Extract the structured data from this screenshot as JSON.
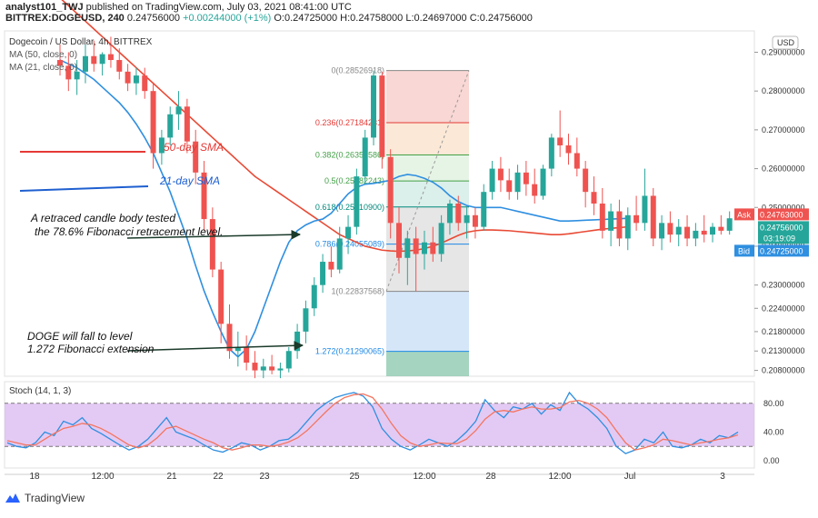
{
  "header": {
    "author": "analyst101_TWJ",
    "published": "published on TradingView.com, July 03, 2021 08:41:00 UTC",
    "symbol": "BITTREX:DOGEUSD, 240",
    "last": "0.24756000",
    "change": "+0.00244000 (+1%)",
    "ohlc": [
      "O:0.24725000",
      "H:0.24758000",
      "L:0.24697000",
      "C:0.24756000"
    ]
  },
  "legend": {
    "title": "Dogecoin / US Dollar, 4h, BITTREX",
    "ma50": "MA (50, close, 0)",
    "ma21": "MA (21, close, 0)"
  },
  "annotations": {
    "sma50": "50-day SMA",
    "sma21": "21-day SMA",
    "note1_line1": "A retraced candle body tested",
    "note1_line2": "the 78.6% Fibonacci retracement level.",
    "note2_line1": "DOGE will fall to level",
    "note2_line2": "1.272 Fibonacci extension"
  },
  "fib_levels": [
    {
      "label": "0(0.28526918)",
      "price": 0.28526918,
      "color": "#888888"
    },
    {
      "label": "0.236(0.27184231)",
      "price": 0.27184231,
      "color": "#e53935"
    },
    {
      "label": "0.382(0.26353586)",
      "price": 0.26353586,
      "color": "#43a047"
    },
    {
      "label": "0.5(0.25682243)",
      "price": 0.25682243,
      "color": "#43a047"
    },
    {
      "label": "0.618(0.25010900)",
      "price": 0.250109,
      "color": "#00897b"
    },
    {
      "label": "0.786(0.24055089)",
      "price": 0.24055089,
      "color": "#1e88e5"
    },
    {
      "label": "1(0.22837568)",
      "price": 0.22837568,
      "color": "#888888"
    },
    {
      "label": "1.272(0.21290065)",
      "price": 0.21290065,
      "color": "#1e88e5"
    }
  ],
  "price_axis": {
    "currency": "USD",
    "ticks": [
      "0.29000000",
      "0.28000000",
      "0.27000000",
      "0.26000000",
      "0.25000000",
      "0.24000000",
      "0.23000000",
      "0.22400000",
      "0.21800000",
      "0.21300000",
      "0.20800000"
    ],
    "ask_label": "Ask",
    "ask_value": "0.24763000",
    "last_value": "0.24756000",
    "countdown": "03:19:09",
    "bid_label": "Bid",
    "bid_value": "0.24725000"
  },
  "stoch": {
    "label": "Stoch (14, 1, 3)",
    "ticks": [
      "80.00",
      "40.00",
      "0.00"
    ],
    "band_upper": 80,
    "band_lower": 20
  },
  "time_axis": [
    "18",
    "12:00",
    "21",
    "22",
    "23",
    "25",
    "12:00",
    "28",
    "12:00",
    "Jul",
    "3"
  ],
  "footer": {
    "brand": "TradingView"
  },
  "colors": {
    "up": "#26a69a",
    "down": "#ef5350",
    "ma50": "#e84a35",
    "ma21": "#2f8fe0",
    "stoch_k": "#2f8fe0",
    "stoch_d": "#f47560",
    "stoch_band": "#d9b8f0",
    "ask": "#ef5350",
    "bid": "#2f8fe0",
    "last": "#26a69a"
  },
  "chart_data": {
    "type": "candlestick",
    "title": "Dogecoin / US Dollar, 4h, BITTREX",
    "ylim": [
      0.2065,
      0.2955
    ],
    "candles": [
      [
        0.288,
        0.292,
        0.284,
        0.2865
      ],
      [
        0.2865,
        0.29,
        0.28,
        0.283
      ],
      [
        0.283,
        0.288,
        0.279,
        0.285
      ],
      [
        0.285,
        0.292,
        0.282,
        0.289
      ],
      [
        0.289,
        0.293,
        0.285,
        0.287
      ],
      [
        0.287,
        0.29,
        0.284,
        0.2895
      ],
      [
        0.2895,
        0.294,
        0.286,
        0.288
      ],
      [
        0.288,
        0.291,
        0.283,
        0.285
      ],
      [
        0.285,
        0.287,
        0.28,
        0.282
      ],
      [
        0.282,
        0.286,
        0.279,
        0.284
      ],
      [
        0.284,
        0.286,
        0.278,
        0.28
      ],
      [
        0.28,
        0.282,
        0.26,
        0.264
      ],
      [
        0.264,
        0.27,
        0.261,
        0.268
      ],
      [
        0.268,
        0.276,
        0.266,
        0.274
      ],
      [
        0.274,
        0.28,
        0.27,
        0.276
      ],
      [
        0.276,
        0.278,
        0.264,
        0.267
      ],
      [
        0.267,
        0.27,
        0.256,
        0.259
      ],
      [
        0.259,
        0.262,
        0.244,
        0.247
      ],
      [
        0.247,
        0.25,
        0.232,
        0.234
      ],
      [
        0.234,
        0.236,
        0.215,
        0.22
      ],
      [
        0.22,
        0.225,
        0.211,
        0.213
      ],
      [
        0.213,
        0.218,
        0.209,
        0.214
      ],
      [
        0.214,
        0.217,
        0.208,
        0.21
      ],
      [
        0.21,
        0.213,
        0.206,
        0.208
      ],
      [
        0.208,
        0.211,
        0.206,
        0.209
      ],
      [
        0.209,
        0.212,
        0.207,
        0.208
      ],
      [
        0.208,
        0.21,
        0.206,
        0.2085
      ],
      [
        0.2085,
        0.214,
        0.2075,
        0.213
      ],
      [
        0.213,
        0.22,
        0.211,
        0.218
      ],
      [
        0.218,
        0.226,
        0.215,
        0.224
      ],
      [
        0.224,
        0.232,
        0.222,
        0.23
      ],
      [
        0.23,
        0.238,
        0.228,
        0.236
      ],
      [
        0.236,
        0.24,
        0.232,
        0.234
      ],
      [
        0.234,
        0.245,
        0.233,
        0.242
      ],
      [
        0.242,
        0.248,
        0.238,
        0.245
      ],
      [
        0.245,
        0.26,
        0.243,
        0.258
      ],
      [
        0.258,
        0.27,
        0.256,
        0.268
      ],
      [
        0.268,
        0.2853,
        0.266,
        0.284
      ],
      [
        0.284,
        0.285,
        0.26,
        0.263
      ],
      [
        0.263,
        0.265,
        0.242,
        0.246
      ],
      [
        0.246,
        0.25,
        0.233,
        0.237
      ],
      [
        0.237,
        0.244,
        0.23,
        0.242
      ],
      [
        0.242,
        0.245,
        0.2284,
        0.238
      ],
      [
        0.238,
        0.244,
        0.234,
        0.241
      ],
      [
        0.241,
        0.245,
        0.236,
        0.238
      ],
      [
        0.238,
        0.248,
        0.236,
        0.246
      ],
      [
        0.246,
        0.252,
        0.243,
        0.251
      ],
      [
        0.251,
        0.253,
        0.244,
        0.246
      ],
      [
        0.246,
        0.25,
        0.242,
        0.248
      ],
      [
        0.248,
        0.25,
        0.242,
        0.245
      ],
      [
        0.245,
        0.256,
        0.244,
        0.254
      ],
      [
        0.254,
        0.262,
        0.252,
        0.26
      ],
      [
        0.26,
        0.263,
        0.254,
        0.257
      ],
      [
        0.257,
        0.26,
        0.252,
        0.254
      ],
      [
        0.254,
        0.261,
        0.252,
        0.259
      ],
      [
        0.259,
        0.262,
        0.253,
        0.256
      ],
      [
        0.256,
        0.26,
        0.251,
        0.253
      ],
      [
        0.253,
        0.261,
        0.252,
        0.26
      ],
      [
        0.26,
        0.269,
        0.258,
        0.268
      ],
      [
        0.268,
        0.275,
        0.263,
        0.266
      ],
      [
        0.266,
        0.269,
        0.261,
        0.264
      ],
      [
        0.264,
        0.268,
        0.258,
        0.26
      ],
      [
        0.26,
        0.262,
        0.25,
        0.254
      ],
      [
        0.254,
        0.258,
        0.248,
        0.251
      ],
      [
        0.251,
        0.255,
        0.242,
        0.244
      ],
      [
        0.244,
        0.251,
        0.24,
        0.249
      ],
      [
        0.249,
        0.252,
        0.24,
        0.242
      ],
      [
        0.242,
        0.25,
        0.239,
        0.248
      ],
      [
        0.248,
        0.253,
        0.244,
        0.246
      ],
      [
        0.246,
        0.26,
        0.244,
        0.253
      ],
      [
        0.253,
        0.255,
        0.24,
        0.242
      ],
      [
        0.242,
        0.248,
        0.239,
        0.246
      ],
      [
        0.246,
        0.249,
        0.241,
        0.243
      ],
      [
        0.243,
        0.247,
        0.24,
        0.245
      ],
      [
        0.245,
        0.248,
        0.24,
        0.242
      ],
      [
        0.242,
        0.246,
        0.24,
        0.244
      ],
      [
        0.244,
        0.248,
        0.241,
        0.243
      ],
      [
        0.243,
        0.246,
        0.241,
        0.245
      ],
      [
        0.245,
        0.248,
        0.243,
        0.244
      ],
      [
        0.244,
        0.249,
        0.243,
        0.2472
      ],
      [
        0.2472,
        0.2476,
        0.247,
        0.2476
      ]
    ],
    "ma50": [
      0.304,
      0.302,
      0.3,
      0.298,
      0.296,
      0.294,
      0.292,
      0.29,
      0.288,
      0.286,
      0.284,
      0.282,
      0.28,
      0.278,
      0.276,
      0.274,
      0.272,
      0.27,
      0.268,
      0.266,
      0.264,
      0.262,
      0.26,
      0.258,
      0.2565,
      0.255,
      0.2535,
      0.252,
      0.2505,
      0.249,
      0.2475,
      0.246,
      0.2445,
      0.243,
      0.242,
      0.241,
      0.24,
      0.2395,
      0.239,
      0.2388,
      0.2387,
      0.2388,
      0.239,
      0.2394,
      0.24,
      0.2408,
      0.2418,
      0.2428,
      0.2436,
      0.244,
      0.2442,
      0.2442,
      0.2441,
      0.244,
      0.2438,
      0.2436,
      0.2434,
      0.2432,
      0.243,
      0.243,
      0.2432,
      0.2435,
      0.2438,
      0.2441,
      0.2444,
      0.2446,
      0.2448,
      0.245
    ],
    "ma21": [
      0.288,
      0.287,
      0.286,
      0.2845,
      0.283,
      0.281,
      0.279,
      0.277,
      0.2745,
      0.2715,
      0.268,
      0.264,
      0.259,
      0.254,
      0.248,
      0.242,
      0.235,
      0.2285,
      0.223,
      0.218,
      0.2135,
      0.2115,
      0.2135,
      0.218,
      0.224,
      0.23,
      0.236,
      0.241,
      0.244,
      0.2455,
      0.2465,
      0.247,
      0.2485,
      0.251,
      0.2535,
      0.2552,
      0.256,
      0.2562,
      0.2566,
      0.257,
      0.258,
      0.2585,
      0.2582,
      0.2575,
      0.2565,
      0.255,
      0.253,
      0.2515,
      0.2505,
      0.25,
      0.25,
      0.25,
      0.25,
      0.2495,
      0.249,
      0.2485,
      0.248,
      0.2475,
      0.247,
      0.2465,
      0.2465,
      0.2466,
      0.2467,
      0.2468,
      0.2469,
      0.247,
      0.2471,
      0.2472
    ],
    "stoch_k": [
      25,
      20,
      18,
      25,
      40,
      35,
      55,
      50,
      60,
      45,
      38,
      30,
      22,
      15,
      20,
      30,
      45,
      60,
      40,
      35,
      30,
      22,
      15,
      12,
      18,
      25,
      22,
      15,
      20,
      28,
      30,
      40,
      55,
      70,
      80,
      88,
      92,
      95,
      90,
      75,
      45,
      30,
      20,
      15,
      22,
      30,
      25,
      20,
      28,
      40,
      55,
      85,
      70,
      60,
      75,
      72,
      80,
      65,
      78,
      70,
      95,
      80,
      72,
      60,
      45,
      20,
      10,
      15,
      30,
      25,
      40,
      20,
      18,
      22,
      30,
      25,
      35,
      32,
      40
    ],
    "stoch_d": [
      28,
      25,
      22,
      22,
      30,
      38,
      45,
      48,
      52,
      50,
      45,
      38,
      30,
      22,
      18,
      22,
      32,
      45,
      48,
      42,
      36,
      30,
      25,
      18,
      15,
      18,
      22,
      22,
      20,
      22,
      26,
      32,
      42,
      55,
      68,
      80,
      88,
      92,
      93,
      88,
      72,
      52,
      35,
      25,
      20,
      22,
      25,
      24,
      24,
      30,
      42,
      58,
      68,
      70,
      68,
      72,
      75,
      72,
      72,
      74,
      82,
      84,
      80,
      72,
      60,
      42,
      25,
      15,
      18,
      22,
      30,
      28,
      25,
      22,
      25,
      27,
      30,
      32,
      36
    ]
  }
}
